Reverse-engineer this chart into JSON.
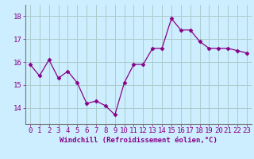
{
  "x": [
    0,
    1,
    2,
    3,
    4,
    5,
    6,
    7,
    8,
    9,
    10,
    11,
    12,
    13,
    14,
    15,
    16,
    17,
    18,
    19,
    20,
    21,
    22,
    23
  ],
  "y": [
    15.9,
    15.4,
    16.1,
    15.3,
    15.6,
    15.1,
    14.2,
    14.3,
    14.1,
    13.7,
    15.1,
    15.9,
    15.9,
    16.6,
    16.6,
    17.9,
    17.4,
    17.4,
    16.9,
    16.6,
    16.6,
    16.6,
    16.5,
    16.4
  ],
  "line_color": "#880088",
  "marker": "D",
  "marker_size": 2.5,
  "bg_color": "#cceeff",
  "grid_color": "#aacccc",
  "ylabel_ticks": [
    14,
    15,
    16,
    17,
    18
  ],
  "ylim": [
    13.3,
    18.5
  ],
  "xlim": [
    -0.5,
    23.5
  ],
  "xlabel": "Windchill (Refroidissement éolien,°C)",
  "xlabel_fontsize": 6.5,
  "tick_fontsize": 6.5,
  "spine_color": "#777777"
}
